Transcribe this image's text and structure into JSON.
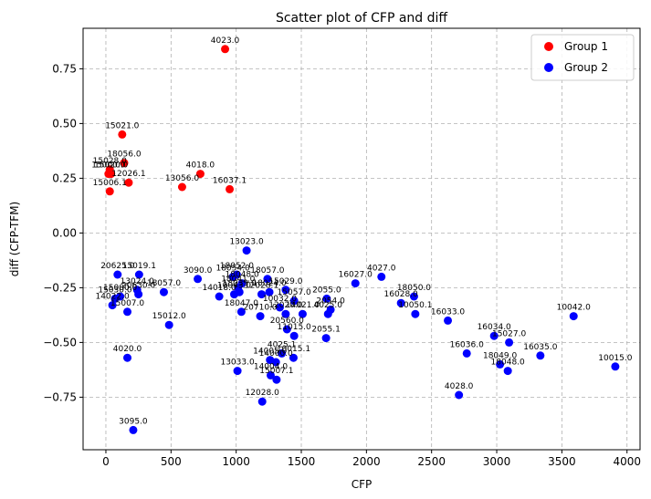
{
  "chart_data": {
    "type": "scatter",
    "title": "Scatter plot of CFP and diff",
    "xlabel": "CFP",
    "ylabel": "diff (CFP-TFM)",
    "xlim": [
      -175,
      4100
    ],
    "ylim": [
      -0.99,
      0.935
    ],
    "xticks": [
      0,
      500,
      1000,
      1500,
      2000,
      2500,
      3000,
      3500,
      4000
    ],
    "xtick_labels": [
      "0",
      "500",
      "1000",
      "1500",
      "2000",
      "2500",
      "3000",
      "3500",
      "4000"
    ],
    "yticks": [
      -0.75,
      -0.5,
      -0.25,
      0.0,
      0.25,
      0.5,
      0.75
    ],
    "ytick_labels": [
      "−0.75",
      "−0.50",
      "−0.25",
      "0.00",
      "0.25",
      "0.50",
      "0.75"
    ],
    "grid": true,
    "legend_position": "top-right",
    "series": [
      {
        "name": "Group 1",
        "color": "#ff0000",
        "points": [
          {
            "x": 915,
            "y": 0.84,
            "label": "4023.0"
          },
          {
            "x": 125,
            "y": 0.45,
            "label": "15021.0"
          },
          {
            "x": 140,
            "y": 0.32,
            "label": "18056.0"
          },
          {
            "x": 30,
            "y": 0.29,
            "label": "15028.0"
          },
          {
            "x": 40,
            "y": 0.27,
            "label": "15020.0"
          },
          {
            "x": 20,
            "y": 0.27,
            "label": "15000.0"
          },
          {
            "x": 175,
            "y": 0.23,
            "label": "12026.1"
          },
          {
            "x": 30,
            "y": 0.19,
            "label": "15006.1"
          },
          {
            "x": 725,
            "y": 0.27,
            "label": "4018.0"
          },
          {
            "x": 585,
            "y": 0.21,
            "label": "13056.0"
          },
          {
            "x": 950,
            "y": 0.2,
            "label": "16037.1"
          }
        ]
      },
      {
        "name": "Group 2",
        "color": "#0000ff",
        "points": [
          {
            "x": 1080,
            "y": -0.08,
            "label": "13023.0"
          },
          {
            "x": 90,
            "y": -0.19,
            "label": "20625.0"
          },
          {
            "x": 255,
            "y": -0.19,
            "label": "15019.1"
          },
          {
            "x": 50,
            "y": -0.33,
            "label": "14022.0"
          },
          {
            "x": 70,
            "y": -0.3,
            "label": "15030.0"
          },
          {
            "x": 110,
            "y": -0.29,
            "label": "15000.0"
          },
          {
            "x": 250,
            "y": -0.28,
            "label": "20630.0"
          },
          {
            "x": 240,
            "y": -0.26,
            "label": "13024.0"
          },
          {
            "x": 165,
            "y": -0.36,
            "label": "15007.0"
          },
          {
            "x": 445,
            "y": -0.27,
            "label": "18057.0"
          },
          {
            "x": 485,
            "y": -0.42,
            "label": "15012.0"
          },
          {
            "x": 165,
            "y": -0.57,
            "label": "4020.0"
          },
          {
            "x": 210,
            "y": -0.9,
            "label": "3095.0"
          },
          {
            "x": 705,
            "y": -0.21,
            "label": "3090.0"
          },
          {
            "x": 975,
            "y": -0.2,
            "label": "18054.0"
          },
          {
            "x": 1005,
            "y": -0.19,
            "label": "18052.0"
          },
          {
            "x": 1045,
            "y": -0.23,
            "label": "18048.0"
          },
          {
            "x": 1015,
            "y": -0.25,
            "label": "18041.0"
          },
          {
            "x": 1025,
            "y": -0.27,
            "label": "18039.0"
          },
          {
            "x": 870,
            "y": -0.29,
            "label": "14018.0"
          },
          {
            "x": 985,
            "y": -0.28,
            "label": "10043.0"
          },
          {
            "x": 1240,
            "y": -0.21,
            "label": "18057.0"
          },
          {
            "x": 1195,
            "y": -0.28,
            "label": "12028.1"
          },
          {
            "x": 1040,
            "y": -0.36,
            "label": "18047.0"
          },
          {
            "x": 1255,
            "y": -0.27,
            "label": "18024.0"
          },
          {
            "x": 1380,
            "y": -0.26,
            "label": "15029.0"
          },
          {
            "x": 1335,
            "y": -0.34,
            "label": "10032.0"
          },
          {
            "x": 1185,
            "y": -0.38,
            "label": "20710.0"
          },
          {
            "x": 1445,
            "y": -0.31,
            "label": "15057.0"
          },
          {
            "x": 1510,
            "y": -0.37,
            "label": "14021.0"
          },
          {
            "x": 1380,
            "y": -0.37,
            "label": "12020.0"
          },
          {
            "x": 1390,
            "y": -0.44,
            "label": "20560.0"
          },
          {
            "x": 1445,
            "y": -0.47,
            "label": "11015.0"
          },
          {
            "x": 1695,
            "y": -0.3,
            "label": "2055.0"
          },
          {
            "x": 1725,
            "y": -0.35,
            "label": "2054.0"
          },
          {
            "x": 1705,
            "y": -0.37,
            "label": "4025.0"
          },
          {
            "x": 1690,
            "y": -0.48,
            "label": "2055.1"
          },
          {
            "x": 1010,
            "y": -0.63,
            "label": "13033.0"
          },
          {
            "x": 1260,
            "y": -0.58,
            "label": "14005.0"
          },
          {
            "x": 1305,
            "y": -0.59,
            "label": "14000.0"
          },
          {
            "x": 1350,
            "y": -0.55,
            "label": "4025.1"
          },
          {
            "x": 1440,
            "y": -0.57,
            "label": "10015.1"
          },
          {
            "x": 1265,
            "y": -0.65,
            "label": "14004.0"
          },
          {
            "x": 1310,
            "y": -0.67,
            "label": "15007.1"
          },
          {
            "x": 1200,
            "y": -0.77,
            "label": "12028.0"
          },
          {
            "x": 1915,
            "y": -0.23,
            "label": "16027.0"
          },
          {
            "x": 2115,
            "y": -0.2,
            "label": "4027.0"
          },
          {
            "x": 2265,
            "y": -0.32,
            "label": "16028.0"
          },
          {
            "x": 2365,
            "y": -0.29,
            "label": "18050.0"
          },
          {
            "x": 2375,
            "y": -0.37,
            "label": "10050.1"
          },
          {
            "x": 2625,
            "y": -0.4,
            "label": "16033.0"
          },
          {
            "x": 2770,
            "y": -0.55,
            "label": "16036.0"
          },
          {
            "x": 2980,
            "y": -0.47,
            "label": "16034.0"
          },
          {
            "x": 3095,
            "y": -0.5,
            "label": "15027.0"
          },
          {
            "x": 3025,
            "y": -0.6,
            "label": "18049.0"
          },
          {
            "x": 3085,
            "y": -0.63,
            "label": "18048.0"
          },
          {
            "x": 3335,
            "y": -0.56,
            "label": "16035.0"
          },
          {
            "x": 2710,
            "y": -0.74,
            "label": "4028.0"
          },
          {
            "x": 3590,
            "y": -0.38,
            "label": "10042.0"
          },
          {
            "x": 3910,
            "y": -0.61,
            "label": "10015.0"
          }
        ]
      }
    ]
  }
}
